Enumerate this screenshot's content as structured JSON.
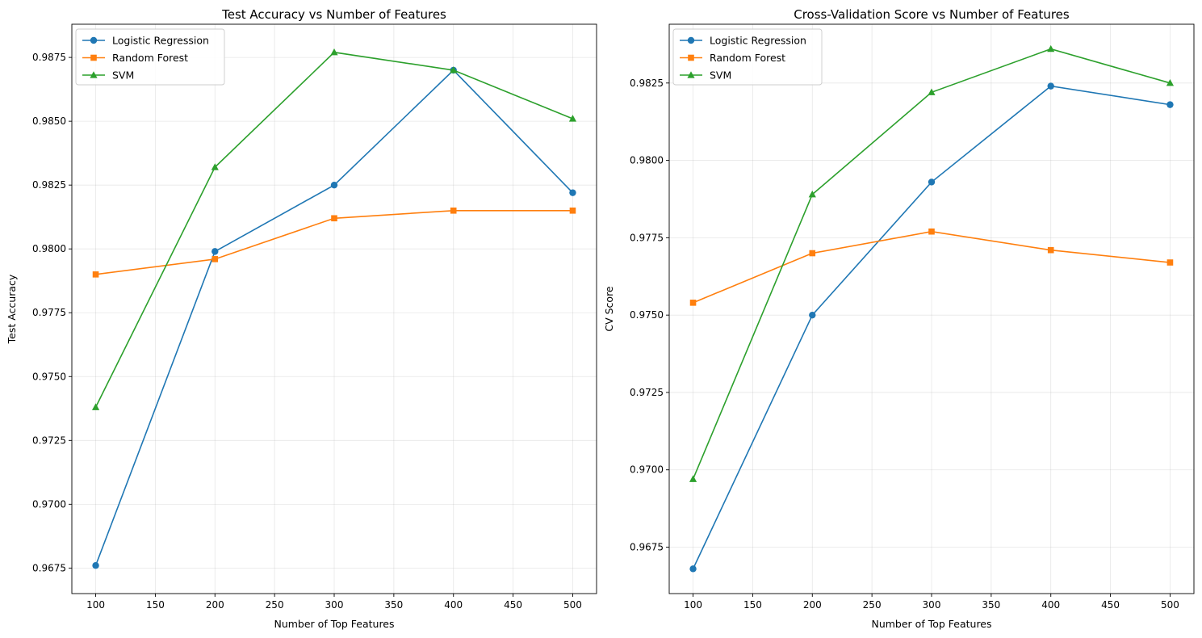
{
  "chart_data": [
    {
      "type": "line",
      "title": "Test Accuracy vs Number of Features",
      "xlabel": "Number of Top Features",
      "ylabel": "Test Accuracy",
      "x": [
        100,
        200,
        300,
        400,
        500
      ],
      "xlim": [
        80,
        520
      ],
      "ylim": [
        0.9665,
        0.9888
      ],
      "xticks": [
        100,
        150,
        200,
        250,
        300,
        350,
        400,
        450,
        500
      ],
      "yticks": [
        0.9675,
        0.97,
        0.9725,
        0.975,
        0.9775,
        0.98,
        0.9825,
        0.985,
        0.9875
      ],
      "xtick_labels": [
        "100",
        "150",
        "200",
        "250",
        "300",
        "350",
        "400",
        "450",
        "500"
      ],
      "ytick_labels": [
        "0.9675",
        "0.9700",
        "0.9725",
        "0.9750",
        "0.9775",
        "0.9800",
        "0.9825",
        "0.9850",
        "0.9875"
      ],
      "grid": true,
      "legend": "top-left",
      "series": [
        {
          "name": "Logistic Regression",
          "color": "#1f77b4",
          "marker": "circle",
          "values": [
            0.9676,
            0.9799,
            0.9825,
            0.987,
            0.9822
          ]
        },
        {
          "name": "Random Forest",
          "color": "#ff7f0e",
          "marker": "square",
          "values": [
            0.979,
            0.9796,
            0.9812,
            0.9815,
            0.9815
          ]
        },
        {
          "name": "SVM",
          "color": "#2ca02c",
          "marker": "triangle",
          "values": [
            0.9738,
            0.9832,
            0.9877,
            0.987,
            0.9851
          ]
        }
      ]
    },
    {
      "type": "line",
      "title": "Cross-Validation Score vs Number of Features",
      "xlabel": "Number of Top Features",
      "ylabel": "CV Score",
      "x": [
        100,
        200,
        300,
        400,
        500
      ],
      "xlim": [
        80,
        520
      ],
      "ylim": [
        0.966,
        0.9844
      ],
      "xticks": [
        100,
        150,
        200,
        250,
        300,
        350,
        400,
        450,
        500
      ],
      "yticks": [
        0.9675,
        0.97,
        0.9725,
        0.975,
        0.9775,
        0.98,
        0.9825
      ],
      "xtick_labels": [
        "100",
        "150",
        "200",
        "250",
        "300",
        "350",
        "400",
        "450",
        "500"
      ],
      "ytick_labels": [
        "0.9675",
        "0.9700",
        "0.9725",
        "0.9750",
        "0.9775",
        "0.9800",
        "0.9825"
      ],
      "grid": true,
      "legend": "top-left",
      "series": [
        {
          "name": "Logistic Regression",
          "color": "#1f77b4",
          "marker": "circle",
          "values": [
            0.9668,
            0.975,
            0.9793,
            0.9824,
            0.9818
          ]
        },
        {
          "name": "Random Forest",
          "color": "#ff7f0e",
          "marker": "square",
          "values": [
            0.9754,
            0.977,
            0.9777,
            0.9771,
            0.9767
          ]
        },
        {
          "name": "SVM",
          "color": "#2ca02c",
          "marker": "triangle",
          "values": [
            0.9697,
            0.9789,
            0.9822,
            0.9836,
            0.9825
          ]
        }
      ]
    }
  ]
}
